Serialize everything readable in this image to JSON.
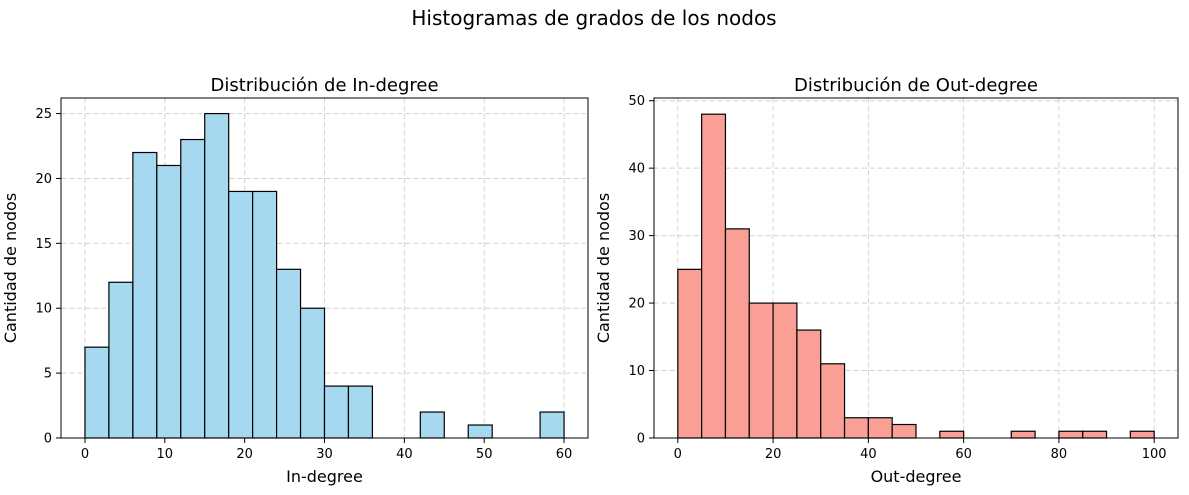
{
  "figure": {
    "suptitle": "Histogramas de grados de los nodos"
  },
  "chart_data": [
    {
      "type": "bar",
      "title": "Distribución de In-degree",
      "xlabel": "In-degree",
      "ylabel": "Cantidad de nodos",
      "bin_edges": [
        0,
        3,
        6,
        9,
        12,
        15,
        18,
        21,
        24,
        27,
        30,
        33,
        36,
        39,
        42,
        45,
        48,
        51,
        54,
        57,
        60
      ],
      "values": [
        7,
        12,
        22,
        21,
        23,
        25,
        19,
        19,
        13,
        10,
        4,
        4,
        0,
        0,
        2,
        0,
        1,
        0,
        0,
        2
      ],
      "xlim": [
        -3,
        63
      ],
      "ylim": [
        0,
        26.2
      ],
      "xticks": [
        0,
        10,
        20,
        30,
        40,
        50,
        60
      ],
      "yticks": [
        0,
        5,
        10,
        15,
        20,
        25
      ],
      "color": "#a6d9ef",
      "grid": true
    },
    {
      "type": "bar",
      "title": "Distribución de Out-degree",
      "xlabel": "Out-degree",
      "ylabel": "Cantidad de nodos",
      "bin_edges": [
        0,
        5,
        10,
        15,
        20,
        25,
        30,
        35,
        40,
        45,
        50,
        55,
        60,
        65,
        70,
        75,
        80,
        85,
        90,
        95,
        100
      ],
      "values": [
        25,
        48,
        31,
        20,
        20,
        16,
        11,
        3,
        3,
        2,
        0,
        1,
        0,
        0,
        1,
        0,
        1,
        1,
        0,
        1
      ],
      "xlim": [
        -5,
        105
      ],
      "ylim": [
        0,
        50.4
      ],
      "xticks": [
        0,
        20,
        40,
        60,
        80,
        100
      ],
      "yticks": [
        0,
        10,
        20,
        30,
        40,
        50
      ],
      "color": "#fa9f96",
      "grid": true
    }
  ]
}
